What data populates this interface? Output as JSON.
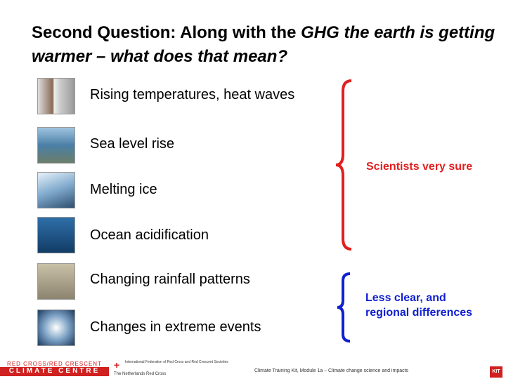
{
  "slide": {
    "title": {
      "plain": "Second Question: Along with the ",
      "italic": "GHG the earth is getting warmer – what does that mean?"
    },
    "items": [
      {
        "label": "Rising temperatures, heat waves"
      },
      {
        "label": "Sea level rise"
      },
      {
        "label": "Melting ice"
      },
      {
        "label": "Ocean acidification"
      },
      {
        "label": "Changing rainfall patterns"
      },
      {
        "label": "Changes in extreme events"
      }
    ],
    "groups": [
      {
        "label": "Scientists very sure"
      },
      {
        "label": "Less clear, and regional differences"
      }
    ],
    "footer": {
      "logo_top": "RED CROSS/RED CRESCENT",
      "logo_bottom": "CLIMATE CENTRE",
      "federation": "International Federation of Red Cross and Red Crescent Societies",
      "netherlands": "The Netherlands Red Cross",
      "module": "Climate Training Kit, Module 1a – Climate change science and impacts",
      "kit": "KIT"
    }
  }
}
